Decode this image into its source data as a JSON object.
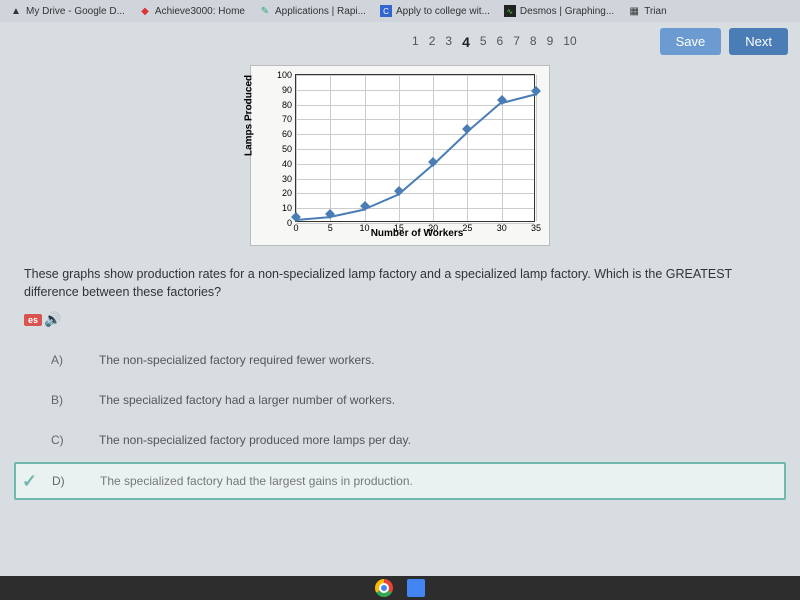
{
  "tabs": [
    {
      "label": "My Drive - Google D..."
    },
    {
      "label": "Achieve3000: Home"
    },
    {
      "label": "Applications | Rapi..."
    },
    {
      "label": "Apply to college wit..."
    },
    {
      "label": "Desmos | Graphing..."
    },
    {
      "label": "Trian"
    }
  ],
  "pagination": {
    "items": [
      "1",
      "2",
      "3",
      "4",
      "5",
      "6",
      "7",
      "8",
      "9",
      "10"
    ],
    "current": "4"
  },
  "buttons": {
    "save": "Save",
    "next": "Next"
  },
  "chart": {
    "ylabel": "Lamps Produced",
    "xlabel": "Number of Workers",
    "xlim": [
      0,
      35
    ],
    "ylim": [
      0,
      100
    ],
    "xticks": [
      0,
      5,
      10,
      15,
      20,
      25,
      30,
      35
    ],
    "yticks": [
      0,
      10,
      20,
      30,
      40,
      50,
      60,
      70,
      80,
      90,
      100
    ],
    "line_color": "#4a7db5",
    "grid_color": "#cccccc",
    "background_color": "#ffffff",
    "marker": "diamond",
    "points": [
      {
        "x": 0,
        "y": 3
      },
      {
        "x": 5,
        "y": 5
      },
      {
        "x": 10,
        "y": 10
      },
      {
        "x": 15,
        "y": 20
      },
      {
        "x": 20,
        "y": 40
      },
      {
        "x": 25,
        "y": 62
      },
      {
        "x": 30,
        "y": 82
      },
      {
        "x": 35,
        "y": 88
      }
    ]
  },
  "question_text": "These graphs show production rates for a non-specialized lamp factory and a specialized lamp factory. Which is the GREATEST difference between these factories?",
  "audio_badge": "es",
  "answers": [
    {
      "letter": "A)",
      "text": "The non-specialized factory required fewer workers.",
      "selected": false
    },
    {
      "letter": "B)",
      "text": "The specialized factory had a larger number of workers.",
      "selected": false
    },
    {
      "letter": "C)",
      "text": "The non-specialized factory produced more lamps per day.",
      "selected": false
    },
    {
      "letter": "D)",
      "text": "The specialized factory had the largest gains in production.",
      "selected": true
    }
  ]
}
